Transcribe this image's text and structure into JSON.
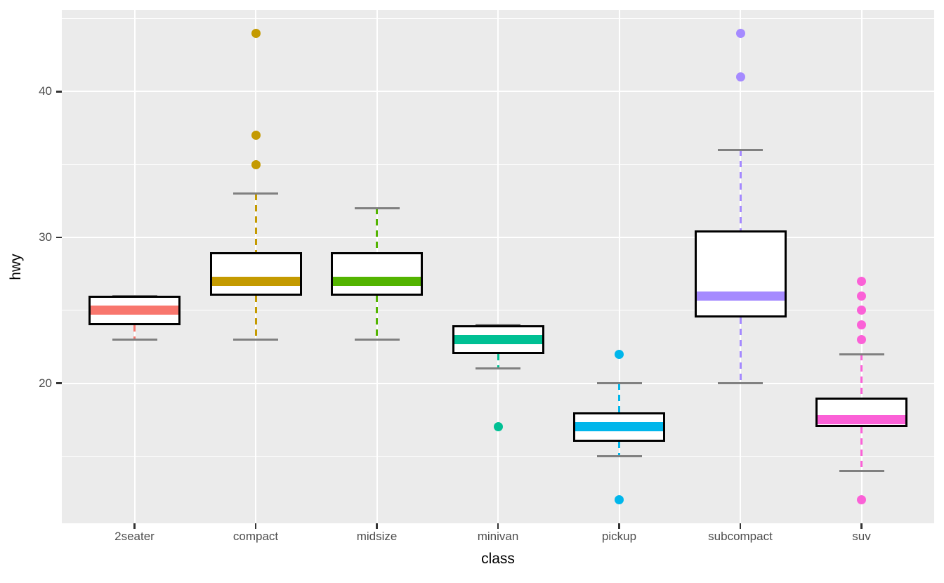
{
  "chart_data": {
    "type": "boxplot",
    "title": "",
    "xlabel": "class",
    "ylabel": "hwy",
    "categories": [
      "2seater",
      "compact",
      "midsize",
      "minivan",
      "pickup",
      "subcompact",
      "suv"
    ],
    "series": [
      {
        "name": "2seater",
        "color": "#F8766D",
        "lower_whisker": 23,
        "q1": 24,
        "median": 25,
        "q3": 26,
        "upper_whisker": 26,
        "outliers": []
      },
      {
        "name": "compact",
        "color": "#C49A00",
        "lower_whisker": 23,
        "q1": 26,
        "median": 27,
        "q3": 29,
        "upper_whisker": 33,
        "outliers": [
          35,
          37,
          44
        ]
      },
      {
        "name": "midsize",
        "color": "#53B400",
        "lower_whisker": 23,
        "q1": 26,
        "median": 27,
        "q3": 29,
        "upper_whisker": 32,
        "outliers": []
      },
      {
        "name": "minivan",
        "color": "#00C094",
        "lower_whisker": 21,
        "q1": 22,
        "median": 23,
        "q3": 24,
        "upper_whisker": 24,
        "outliers": [
          17
        ]
      },
      {
        "name": "pickup",
        "color": "#00B6EB",
        "lower_whisker": 15,
        "q1": 16,
        "median": 17,
        "q3": 18,
        "upper_whisker": 20,
        "outliers": [
          22,
          12
        ]
      },
      {
        "name": "subcompact",
        "color": "#A58AFF",
        "lower_whisker": 20,
        "q1": 24.5,
        "median": 26,
        "q3": 30.5,
        "upper_whisker": 36,
        "outliers": [
          41,
          44
        ]
      },
      {
        "name": "suv",
        "color": "#FB61D7",
        "lower_whisker": 14,
        "q1": 17,
        "median": 17.5,
        "q3": 19,
        "upper_whisker": 22,
        "outliers": [
          23,
          24,
          25,
          26,
          27,
          12
        ]
      }
    ],
    "ylim": [
      10.4,
      45.6
    ],
    "y_major_ticks": [
      20,
      30,
      40
    ],
    "y_minor_ticks": [
      15,
      25,
      35,
      45
    ],
    "grid": "on",
    "legend": "none",
    "style": {
      "panel_background": "#EBEBEB",
      "grid_color": "#FFFFFF",
      "box_fill": "#FFFFFF",
      "box_border": "#000000",
      "staple_color": "#808080",
      "tick_label_color": "#4D4D4D",
      "axis_title_color": "#000000",
      "tick_mark_color": "#333333"
    }
  }
}
